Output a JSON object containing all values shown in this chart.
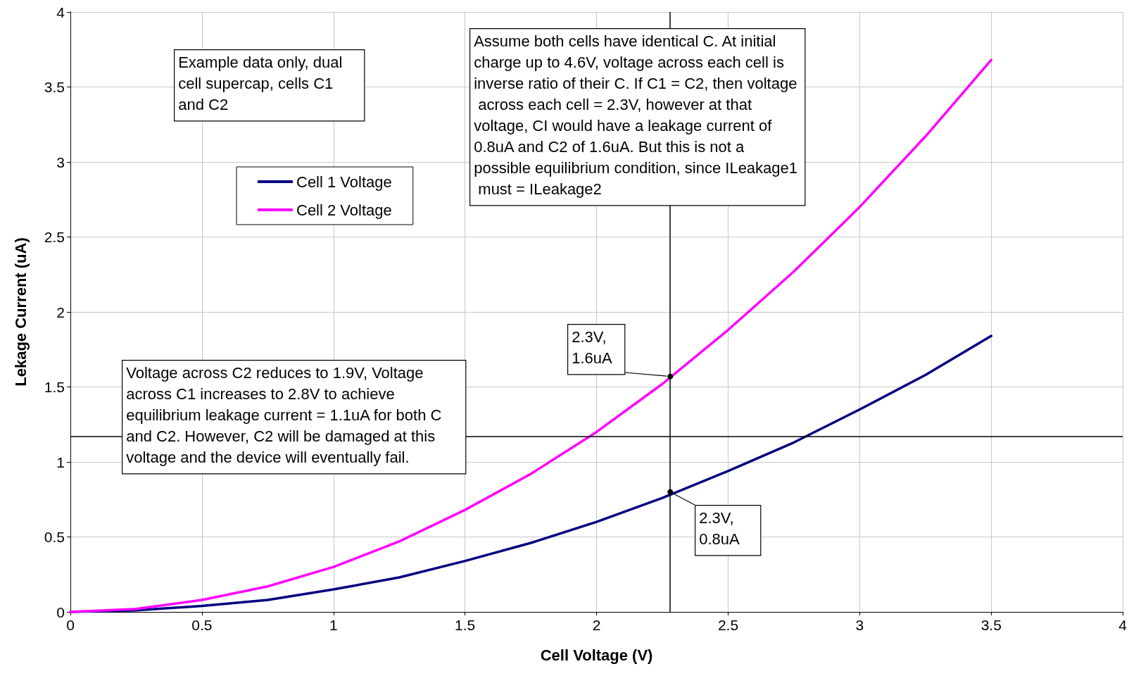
{
  "chart_data": {
    "type": "line",
    "xlabel": "Cell Voltage (V)",
    "ylabel": "Lekage Current (uA)",
    "x": [
      0,
      0.25,
      0.5,
      0.75,
      1,
      1.25,
      1.5,
      1.75,
      2,
      2.25,
      2.5,
      2.75,
      3,
      3.25,
      3.5
    ],
    "series": [
      {
        "name": "Cell 1 Voltage",
        "color": "#000080",
        "values": [
          0,
          0.01,
          0.04,
          0.08,
          0.15,
          0.23,
          0.34,
          0.46,
          0.6,
          0.76,
          0.94,
          1.13,
          1.35,
          1.58,
          1.84
        ]
      },
      {
        "name": "Cell 2 Voltage",
        "color": "#ff00ff",
        "values": [
          0,
          0.02,
          0.08,
          0.17,
          0.3,
          0.47,
          0.68,
          0.92,
          1.2,
          1.52,
          1.88,
          2.27,
          2.7,
          3.17,
          3.68
        ]
      }
    ],
    "xlim": [
      0,
      4
    ],
    "xticks": [
      0,
      0.5,
      1,
      1.5,
      2,
      2.5,
      3,
      3.5,
      4
    ],
    "ylim": [
      0,
      4
    ],
    "yticks": [
      0,
      0.5,
      1,
      1.5,
      2,
      2.5,
      3,
      3.5,
      4
    ],
    "grid": true,
    "legend": "top left",
    "marker": "none",
    "line_style": "solid",
    "ref_lines": [
      {
        "axis": "x",
        "value": 2.28,
        "color": "#000000"
      },
      {
        "axis": "y",
        "value": 1.17,
        "color": "#000000"
      }
    ],
    "annotations": [
      "Example data only, dual cell supercap, cells C1 and C2",
      "Assume both cells have identical C. At initial charge up to 4.6V, voltage across each cell is inverse ratio of their C. If C1 = C2, then voltage across each cell = 2.3V, however at that voltage, CI would have a leakage current of 0.8uA and C2 of 1.6uA. But this is not a possible equilibrium condition, since ILeakage1 must = ILeakage2",
      {
        "text": "2.3V, 1.6uA",
        "x": 2.28,
        "y": 1.57
      },
      "Voltage across C2 reduces to 1.9V, Voltage across C1 increases to 2.8V to achieve equilibrium leakage current = 1.1uA for both C and C2. However, C2 will be damaged at this voltage and the device will eventually fail.",
      {
        "text": "2.3V, 0.8uA",
        "x": 2.28,
        "y": 0.8
      }
    ]
  }
}
